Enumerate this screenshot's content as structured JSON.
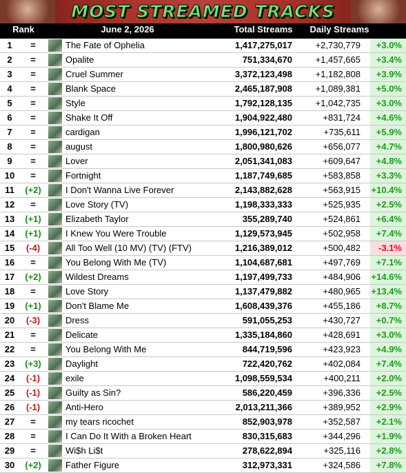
{
  "header": {
    "title": "MOST STREAMED TRACKS"
  },
  "table": {
    "columns": [
      "Rank",
      "June 2, 2026",
      "Total Streams",
      "Daily Streams"
    ],
    "rows": [
      [
        "1",
        "=",
        "The Fate of Ophelia",
        "1,417,275,017",
        "+2,730,779",
        "+3.0%"
      ],
      [
        "2",
        "=",
        "Opalite",
        "751,334,670",
        "+1,457,665",
        "+3.4%"
      ],
      [
        "3",
        "=",
        "Cruel Summer",
        "3,372,123,498",
        "+1,182,808",
        "+3.9%"
      ],
      [
        "4",
        "=",
        "Blank Space",
        "2,465,187,908",
        "+1,089,381",
        "+5.0%"
      ],
      [
        "5",
        "=",
        "Style",
        "1,792,128,135",
        "+1,042,735",
        "+3.0%"
      ],
      [
        "6",
        "=",
        "Shake It Off",
        "1,904,922,480",
        "+831,724",
        "+4.6%"
      ],
      [
        "7",
        "=",
        "cardigan",
        "1,996,121,702",
        "+735,611",
        "+5.9%"
      ],
      [
        "8",
        "=",
        "august",
        "1,800,980,626",
        "+656,077",
        "+4.7%"
      ],
      [
        "9",
        "=",
        "Lover",
        "2,051,341,083",
        "+609,647",
        "+4.8%"
      ],
      [
        "10",
        "=",
        "Fortnight",
        "1,187,749,685",
        "+583,858",
        "+3.3%"
      ],
      [
        "11",
        "(+2)",
        "I Don't Wanna Live Forever",
        "2,143,882,628",
        "+563,915",
        "+10.4%"
      ],
      [
        "12",
        "=",
        "Love Story (TV)",
        "1,198,333,333",
        "+525,935",
        "+2.5%"
      ],
      [
        "13",
        "(+1)",
        "Elizabeth Taylor",
        "355,289,740",
        "+524,861",
        "+6.4%"
      ],
      [
        "14",
        "(+1)",
        "I Knew You Were Trouble",
        "1,129,573,945",
        "+502,958",
        "+7.4%"
      ],
      [
        "15",
        "(-4)",
        "All Too Well (10 MV) (TV) (FTV)",
        "1,216,389,012",
        "+500,482",
        "-3.1%"
      ],
      [
        "16",
        "=",
        "You Belong With Me (TV)",
        "1,104,687,681",
        "+497,769",
        "+7.1%"
      ],
      [
        "17",
        "(+2)",
        "Wildest Dreams",
        "1,197,499,733",
        "+484,906",
        "+14.6%"
      ],
      [
        "18",
        "=",
        "Love Story",
        "1,137,479,882",
        "+480,965",
        "+13.4%"
      ],
      [
        "19",
        "(+1)",
        "Don't Blame Me",
        "1,608,439,376",
        "+455,186",
        "+8.7%"
      ],
      [
        "20",
        "(-3)",
        "Dress",
        "591,055,253",
        "+430,727",
        "+0.7%"
      ],
      [
        "21",
        "=",
        "Delicate",
        "1,335,184,860",
        "+428,691",
        "+3.0%"
      ],
      [
        "22",
        "=",
        "You Belong With Me",
        "844,719,596",
        "+423,923",
        "+4.9%"
      ],
      [
        "23",
        "(+3)",
        "Daylight",
        "722,420,762",
        "+402,084",
        "+7.4%"
      ],
      [
        "24",
        "(-1)",
        "exile",
        "1,098,559,534",
        "+400,211",
        "+2.0%"
      ],
      [
        "25",
        "(-1)",
        "Guilty as Sin?",
        "586,220,459",
        "+396,336",
        "+2.5%"
      ],
      [
        "26",
        "(-1)",
        "Anti-Hero",
        "2,013,211,366",
        "+389,952",
        "+2.9%"
      ],
      [
        "27",
        "=",
        "my tears ricochet",
        "852,903,978",
        "+352,587",
        "+2.1%"
      ],
      [
        "28",
        "=",
        "I Can Do It With a Broken Heart",
        "830,315,683",
        "+344,296",
        "+1.9%"
      ],
      [
        "29",
        "=",
        "Wi$h Li$t",
        "278,622,894",
        "+325,116",
        "+2.8%"
      ],
      [
        "30",
        "(+2)",
        "Father Figure",
        "312,973,331",
        "+324,586",
        "+7.8%"
      ]
    ]
  }
}
